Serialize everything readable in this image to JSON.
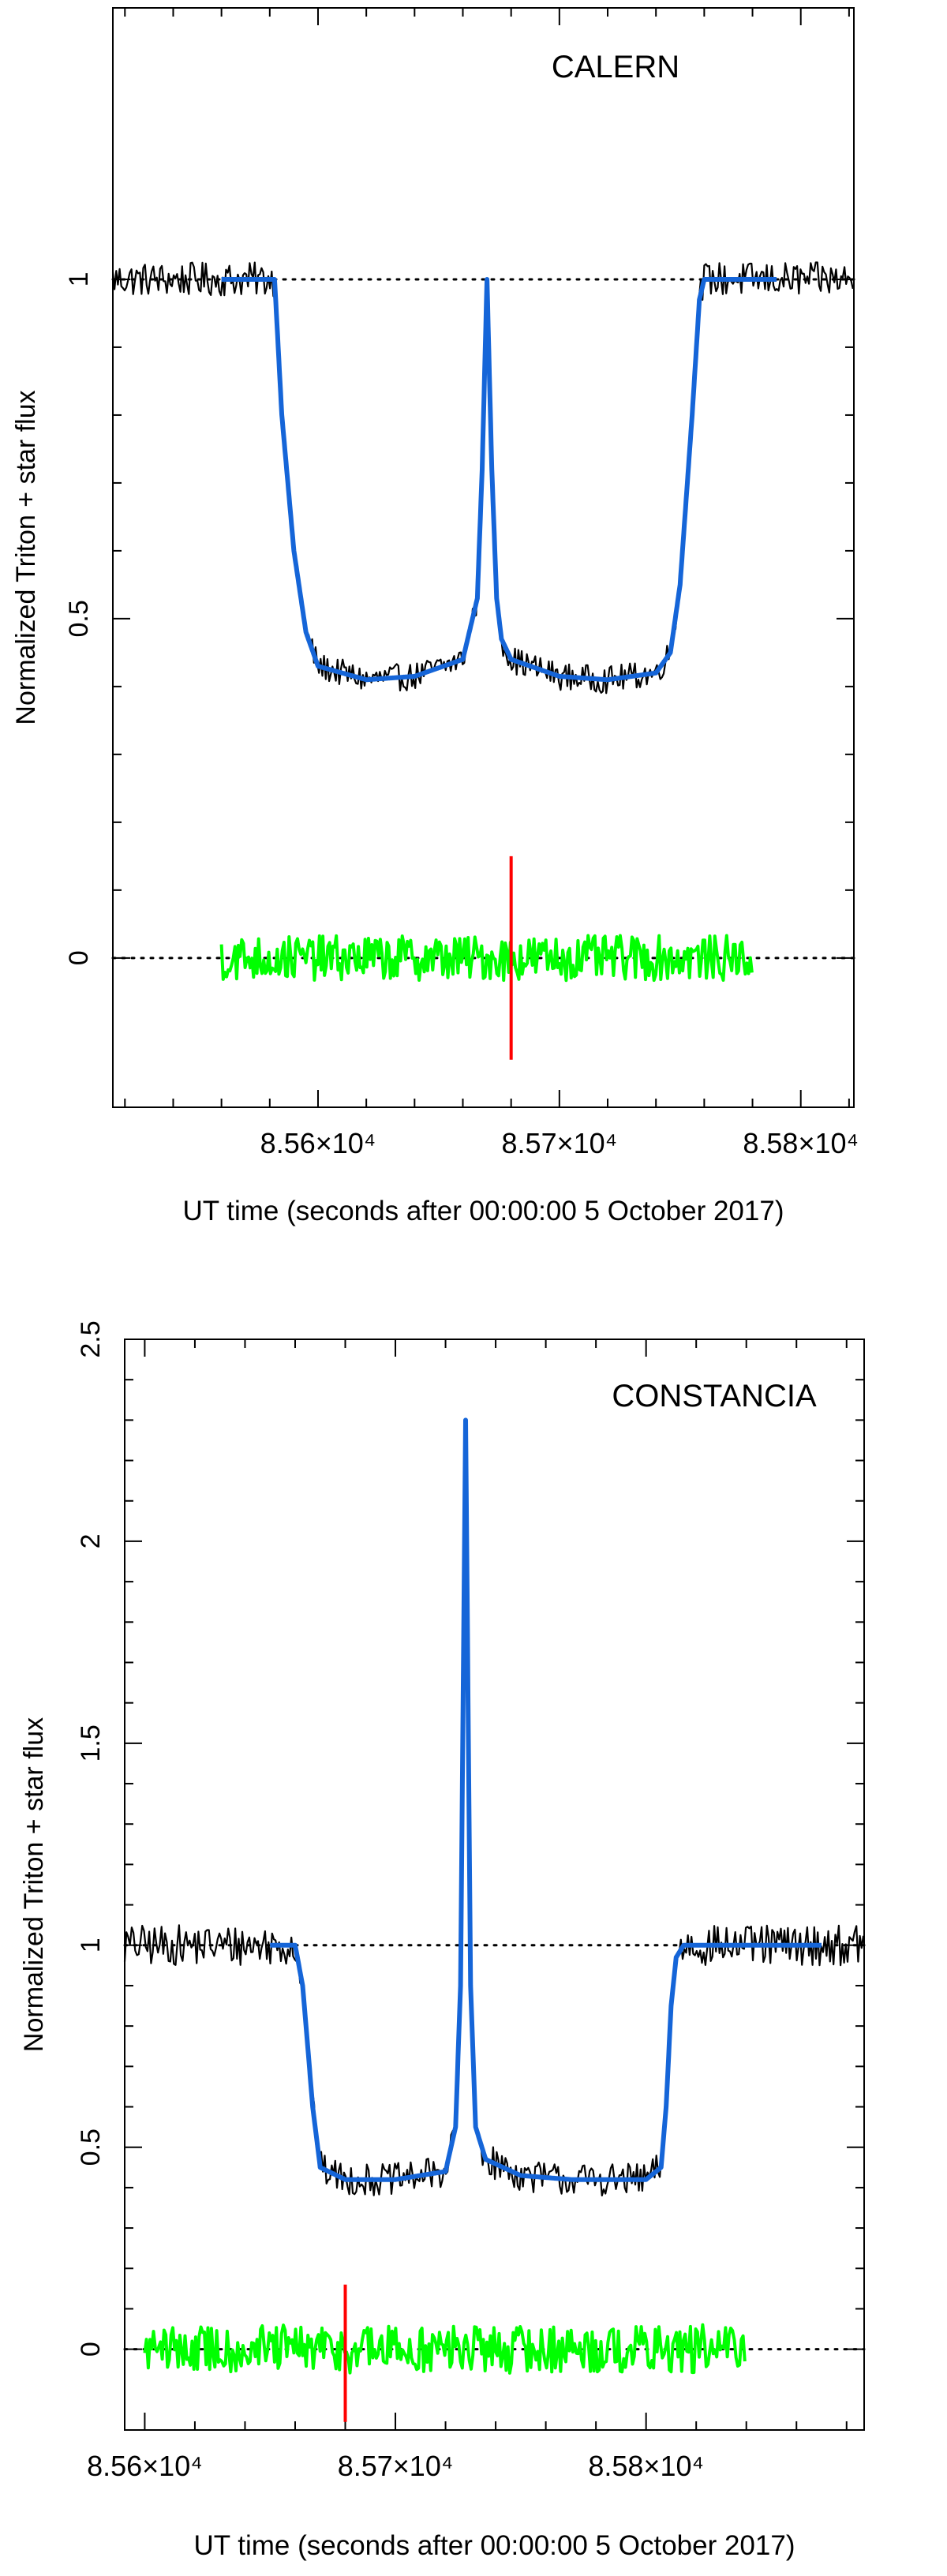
{
  "figure": {
    "xlabel": "UT time (seconds after 00:00:00 5 October 2017)",
    "ylabel": "Normalized Triton + star flux",
    "colors": {
      "data": "#000000",
      "model": "#1565d8",
      "residuals": "#00ff00",
      "marker": "#ff0000",
      "reference": "#000000"
    }
  },
  "chart_data": [
    {
      "type": "line",
      "title": "CALERN",
      "xlabel": "UT time (seconds after 00:00:00 5 October 2017)",
      "ylabel": "Normalized Triton + star flux",
      "xlim": [
        85515,
        85822
      ],
      "ylim": [
        -0.22,
        1.4
      ],
      "x_ticks": [
        85600,
        85700,
        85800
      ],
      "x_tick_labels": [
        "8.56×10⁴",
        "8.57×10⁴",
        "8.58×10⁴"
      ],
      "y_ticks": [
        0,
        0.5,
        1
      ],
      "y_tick_labels": [
        "0",
        "0.5",
        "1"
      ],
      "reference_lines": [
        1,
        0
      ],
      "vertical_marker": {
        "x": 85680,
        "y_range": [
          -0.15,
          0.15
        ]
      },
      "series": [
        {
          "kind": "observed",
          "x": [
            85515,
            85560,
            85582,
            85585,
            85590,
            85595,
            85600,
            85620,
            85640,
            85660,
            85666,
            85668,
            85670,
            85672,
            85674,
            85676,
            85680,
            85700,
            85720,
            85740,
            85746,
            85750,
            85755,
            85758,
            85760,
            85790,
            85822
          ],
          "y": [
            1.0,
            1.0,
            1.0,
            0.8,
            0.6,
            0.48,
            0.43,
            0.41,
            0.415,
            0.44,
            0.53,
            0.72,
            1.0,
            0.72,
            0.53,
            0.47,
            0.44,
            0.415,
            0.41,
            0.42,
            0.45,
            0.55,
            0.8,
            0.97,
            1.0,
            1.0,
            1.0
          ],
          "noise": 0.025
        },
        {
          "kind": "model",
          "x": [
            85560,
            85582,
            85585,
            85590,
            85595,
            85600,
            85620,
            85640,
            85660,
            85666,
            85668,
            85670,
            85672,
            85674,
            85676,
            85680,
            85700,
            85720,
            85740,
            85746,
            85750,
            85755,
            85758,
            85760,
            85790
          ],
          "y": [
            1.0,
            1.0,
            0.8,
            0.6,
            0.48,
            0.43,
            0.41,
            0.415,
            0.44,
            0.53,
            0.72,
            1.0,
            0.72,
            0.53,
            0.47,
            0.44,
            0.415,
            0.41,
            0.42,
            0.45,
            0.55,
            0.8,
            0.97,
            1.0,
            1.0
          ]
        },
        {
          "kind": "residuals",
          "x": [
            85560,
            85780
          ],
          "y": [
            0,
            0
          ],
          "noise": 0.03
        }
      ]
    },
    {
      "type": "line",
      "title": "CONSTANCIA",
      "xlabel": "UT time (seconds after 00:00:00 5 October 2017)",
      "ylabel": "Normalized Triton + star flux",
      "xlim": [
        85592,
        85887
      ],
      "ylim": [
        -0.2,
        2.5
      ],
      "x_ticks": [
        85600,
        85700,
        85800
      ],
      "x_tick_labels": [
        "8.56×10⁴",
        "8.57×10⁴",
        "8.58×10⁴"
      ],
      "y_ticks": [
        0,
        0.5,
        1,
        1.5,
        2,
        2.5
      ],
      "y_tick_labels": [
        "0",
        "0.5",
        "1",
        "1.5",
        "2",
        "2.5"
      ],
      "reference_lines": [
        1,
        0
      ],
      "vertical_marker": {
        "x": 85680,
        "y_range": [
          -0.18,
          0.16
        ]
      },
      "series": [
        {
          "kind": "observed",
          "x": [
            85592,
            85650,
            85660,
            85663,
            85667,
            85670,
            85680,
            85700,
            85720,
            85724,
            85726,
            85727,
            85728,
            85729,
            85730,
            85732,
            85736,
            85750,
            85770,
            85800,
            85806,
            85808,
            85810,
            85812,
            85815,
            85887
          ],
          "y": [
            1.0,
            1.0,
            1.0,
            0.9,
            0.6,
            0.45,
            0.42,
            0.42,
            0.44,
            0.55,
            0.9,
            1.6,
            2.3,
            1.6,
            0.9,
            0.55,
            0.47,
            0.43,
            0.42,
            0.42,
            0.45,
            0.6,
            0.85,
            0.97,
            1.0,
            1.0
          ],
          "noise": 0.05
        },
        {
          "kind": "model",
          "x": [
            85650,
            85660,
            85663,
            85667,
            85670,
            85680,
            85700,
            85720,
            85724,
            85726,
            85727,
            85728,
            85729,
            85730,
            85732,
            85736,
            85750,
            85770,
            85800,
            85806,
            85808,
            85810,
            85812,
            85815,
            85870
          ],
          "y": [
            1.0,
            1.0,
            0.9,
            0.6,
            0.45,
            0.42,
            0.42,
            0.44,
            0.55,
            0.9,
            1.6,
            2.3,
            1.6,
            0.9,
            0.55,
            0.47,
            0.43,
            0.42,
            0.42,
            0.45,
            0.6,
            0.85,
            0.97,
            1.0,
            1.0
          ]
        },
        {
          "kind": "residuals",
          "x": [
            85600,
            85840
          ],
          "y": [
            0,
            0
          ],
          "noise": 0.055
        }
      ]
    }
  ]
}
